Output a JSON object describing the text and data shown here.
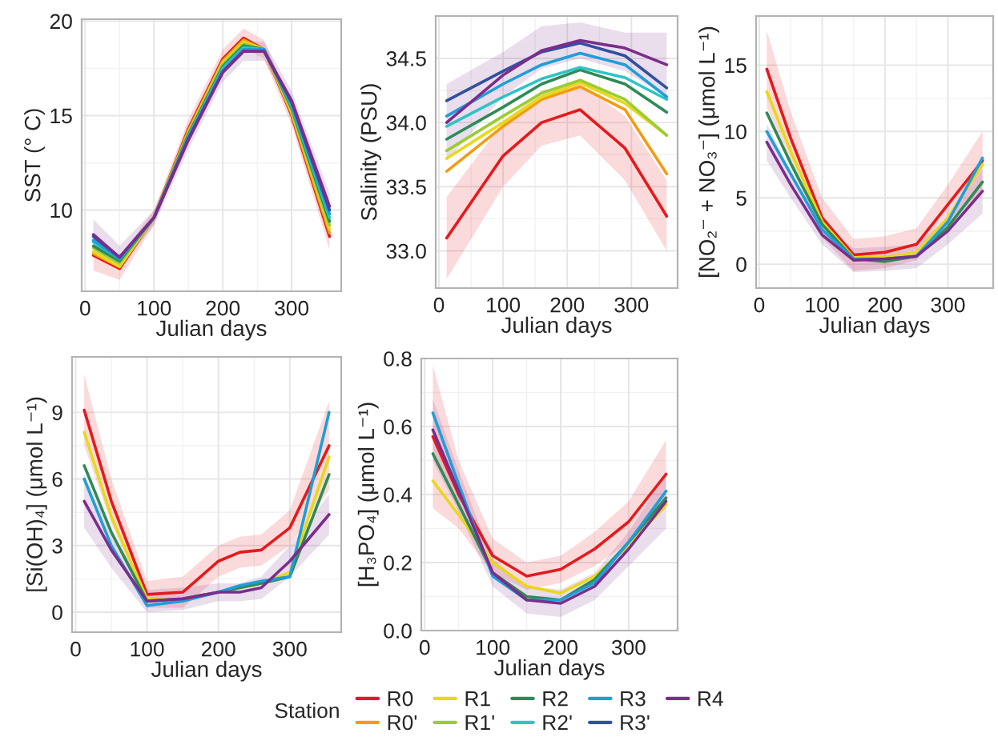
{
  "chart_data": [
    {
      "type": "line",
      "xlabel": "Julian days",
      "ylabel": "SST (° C)",
      "xlim": [
        -5,
        372
      ],
      "xticks": [
        0,
        100,
        200,
        300
      ],
      "ylim": [
        5.7,
        20.1
      ],
      "yticks": [
        10,
        15,
        20
      ],
      "grid": true,
      "legend": "bottom",
      "legend_title": "Station",
      "x": [
        12,
        50,
        100,
        150,
        200,
        230,
        260,
        300,
        355
      ],
      "series": [
        {
          "name": "R0",
          "color": "#e41a1c",
          "values": [
            7.6,
            6.9,
            9.6,
            14.3,
            18.0,
            19.1,
            18.5,
            15.0,
            8.6
          ],
          "lower": [
            6.8,
            6.3,
            9.2,
            13.8,
            17.5,
            18.6,
            18.0,
            14.5,
            7.9
          ],
          "upper": [
            8.4,
            7.5,
            10.0,
            14.8,
            18.5,
            19.6,
            19.0,
            15.5,
            9.3
          ]
        },
        {
          "name": "R0'",
          "color": "#f39c12",
          "values": [
            7.7,
            7.0,
            9.6,
            14.2,
            17.9,
            19.0,
            18.5,
            15.1,
            8.8
          ]
        },
        {
          "name": "R1",
          "color": "#e8d81a",
          "values": [
            7.8,
            7.0,
            9.6,
            14.1,
            17.8,
            18.9,
            18.5,
            15.2,
            9.0
          ]
        },
        {
          "name": "R1'",
          "color": "#9acd32",
          "values": [
            8.0,
            7.2,
            9.6,
            14.0,
            17.7,
            18.8,
            18.5,
            15.3,
            9.2
          ]
        },
        {
          "name": "R2",
          "color": "#2e8b57",
          "values": [
            8.1,
            7.3,
            9.6,
            14.0,
            17.6,
            18.7,
            18.5,
            15.4,
            9.4
          ]
        },
        {
          "name": "R2'",
          "color": "#2ec4c6",
          "values": [
            8.3,
            7.4,
            9.6,
            13.9,
            17.5,
            18.6,
            18.5,
            15.5,
            9.6
          ]
        },
        {
          "name": "R3",
          "color": "#1f9ed9",
          "values": [
            8.4,
            7.4,
            9.6,
            13.8,
            17.4,
            18.5,
            18.5,
            15.6,
            9.8
          ]
        },
        {
          "name": "R3'",
          "color": "#3050a0",
          "values": [
            8.6,
            7.5,
            9.6,
            13.8,
            17.3,
            18.4,
            18.4,
            15.7,
            10.0
          ]
        },
        {
          "name": "R4",
          "color": "#7b2d8b",
          "values": [
            8.7,
            7.5,
            9.6,
            13.7,
            17.3,
            18.4,
            18.4,
            15.8,
            10.2
          ],
          "lower": [
            7.9,
            6.9,
            9.2,
            13.2,
            16.8,
            17.9,
            17.9,
            15.3,
            9.5
          ],
          "upper": [
            9.5,
            8.1,
            10.0,
            14.2,
            17.8,
            18.9,
            18.9,
            16.3,
            10.9
          ]
        }
      ]
    },
    {
      "type": "line",
      "xlabel": "Julian days",
      "ylabel": "Salinity (PSU)",
      "xlim": [
        -5,
        372
      ],
      "xticks": [
        0,
        100,
        200,
        300
      ],
      "ylim": [
        32.71,
        34.83
      ],
      "yticks": [
        {
          "value": 33.0,
          "label": "33.0"
        },
        {
          "value": 33.5,
          "label": "33.5"
        },
        {
          "value": 34.0,
          "label": "34.0"
        },
        {
          "value": 34.5,
          "label": "34.5"
        }
      ],
      "grid": true,
      "x": [
        12,
        100,
        160,
        220,
        290,
        355
      ],
      "series": [
        {
          "color": "#e41a1c",
          "values": [
            33.1,
            33.74,
            34.0,
            34.1,
            33.8,
            33.27
          ],
          "lower": [
            32.78,
            33.5,
            33.82,
            33.9,
            33.55,
            33.0
          ],
          "upper": [
            33.42,
            34.0,
            34.25,
            34.3,
            34.05,
            33.55
          ]
        },
        {
          "color": "#f39c12",
          "values": [
            33.62,
            33.97,
            34.18,
            34.28,
            34.1,
            33.6
          ]
        },
        {
          "color": "#e8d81a",
          "values": [
            33.72,
            34.0,
            34.2,
            34.31,
            34.15,
            33.9
          ]
        },
        {
          "color": "#9acd32",
          "values": [
            33.78,
            34.05,
            34.23,
            34.33,
            34.18,
            33.9
          ]
        },
        {
          "color": "#2e8b57",
          "values": [
            33.87,
            34.12,
            34.3,
            34.41,
            34.3,
            34.08
          ]
        },
        {
          "color": "#2ec4c6",
          "values": [
            33.97,
            34.2,
            34.34,
            34.43,
            34.35,
            34.18
          ]
        },
        {
          "color": "#1f9ed9",
          "values": [
            34.05,
            34.3,
            34.45,
            34.54,
            34.45,
            34.2
          ]
        },
        {
          "color": "#3050a0",
          "values": [
            34.17,
            34.4,
            34.55,
            34.62,
            34.52,
            34.27
          ]
        },
        {
          "color": "#7b2d8b",
          "values": [
            34.0,
            34.37,
            34.56,
            34.64,
            34.58,
            34.45
          ],
          "lower": [
            33.7,
            34.2,
            34.42,
            34.5,
            34.4,
            34.2
          ],
          "upper": [
            34.3,
            34.55,
            34.75,
            34.78,
            34.7,
            34.7
          ]
        }
      ]
    },
    {
      "type": "line",
      "xlabel": "Julian days",
      "ylabel": "[NO₂⁻ + NO₃⁻] (μmol L⁻¹)",
      "xlim": [
        -5,
        372
      ],
      "xticks": [
        0,
        100,
        200,
        300
      ],
      "ylim": [
        -1.8,
        18.7
      ],
      "yticks": [
        0,
        5,
        10,
        15
      ],
      "grid": true,
      "x": [
        12,
        50,
        100,
        150,
        200,
        250,
        300,
        355
      ],
      "series": [
        {
          "color": "#e41a1c",
          "values": [
            14.7,
            9.5,
            3.5,
            0.7,
            0.9,
            1.5,
            4.5,
            7.8
          ],
          "lower": [
            11.8,
            7.5,
            2.0,
            -0.5,
            -0.3,
            0.3,
            3.0,
            5.5
          ],
          "upper": [
            17.6,
            11.5,
            5.0,
            1.9,
            2.1,
            2.7,
            6.0,
            10.0
          ]
        },
        {
          "color": "#e8d81a",
          "values": [
            13.0,
            8.5,
            3.2,
            0.5,
            0.5,
            0.9,
            3.5,
            7.5
          ]
        },
        {
          "color": "#2e8b57",
          "values": [
            11.4,
            7.6,
            3.0,
            0.4,
            0.2,
            0.6,
            2.8,
            6.2
          ]
        },
        {
          "color": "#1f9ed9",
          "values": [
            10.0,
            6.8,
            2.6,
            0.4,
            0.4,
            0.6,
            3.2,
            8.0
          ]
        },
        {
          "color": "#7b2d8b",
          "values": [
            9.2,
            6.0,
            2.2,
            0.3,
            0.4,
            0.6,
            2.5,
            5.5
          ],
          "lower": [
            7.8,
            5.0,
            1.5,
            -0.6,
            -0.5,
            -0.3,
            1.5,
            3.8
          ],
          "upper": [
            10.6,
            7.0,
            2.9,
            1.2,
            1.3,
            1.5,
            3.5,
            7.2
          ]
        }
      ]
    },
    {
      "type": "line",
      "xlabel": "Julian days",
      "ylabel": "[Si(OH)₄] (μmol L⁻¹)",
      "xlim": [
        -5,
        372
      ],
      "xticks": [
        0,
        100,
        200,
        300
      ],
      "ylim": [
        -0.9,
        11.5
      ],
      "yticks": [
        0,
        3,
        6,
        9
      ],
      "grid": true,
      "x": [
        12,
        50,
        100,
        150,
        200,
        230,
        260,
        300,
        355
      ],
      "series": [
        {
          "color": "#e41a1c",
          "values": [
            9.1,
            5.0,
            0.8,
            0.9,
            2.3,
            2.7,
            2.8,
            3.8,
            7.5
          ],
          "lower": [
            7.5,
            4.0,
            0.2,
            0.2,
            1.6,
            2.0,
            2.1,
            3.0,
            5.5
          ],
          "upper": [
            10.7,
            6.0,
            1.4,
            1.6,
            3.0,
            3.4,
            3.5,
            4.6,
            9.5
          ]
        },
        {
          "color": "#e8d81a",
          "values": [
            8.1,
            4.3,
            0.6,
            0.6,
            0.9,
            1.1,
            1.3,
            1.8,
            7.0
          ]
        },
        {
          "color": "#2e8b57",
          "values": [
            6.6,
            3.6,
            0.5,
            0.6,
            0.9,
            1.1,
            1.3,
            1.6,
            6.2
          ]
        },
        {
          "color": "#1f9ed9",
          "values": [
            6.0,
            3.0,
            0.3,
            0.5,
            0.9,
            1.2,
            1.4,
            1.6,
            9.0
          ]
        },
        {
          "color": "#7b2d8b",
          "values": [
            5.0,
            2.8,
            0.5,
            0.6,
            0.9,
            0.9,
            1.1,
            2.3,
            4.4
          ],
          "lower": [
            3.8,
            2.0,
            0.0,
            0.1,
            0.5,
            0.5,
            0.6,
            1.6,
            3.5
          ],
          "upper": [
            6.2,
            3.6,
            1.0,
            1.1,
            1.3,
            1.3,
            1.6,
            3.0,
            5.3
          ]
        }
      ]
    },
    {
      "type": "line",
      "xlabel": "Julian days",
      "ylabel": "[H₃PO₄] (μmol L⁻¹)",
      "xlim": [
        -5,
        372
      ],
      "xticks": [
        0,
        100,
        200,
        300
      ],
      "ylim": [
        0,
        0.8
      ],
      "yticks": [
        {
          "value": 0,
          "label": "0.0"
        },
        {
          "value": 0.2,
          "label": "0.2"
        },
        {
          "value": 0.4,
          "label": "0.4"
        },
        {
          "value": 0.6,
          "label": "0.6"
        },
        {
          "value": 0.8,
          "label": "0.8"
        }
      ],
      "grid": true,
      "x": [
        12,
        50,
        100,
        150,
        200,
        250,
        300,
        355
      ],
      "series": [
        {
          "color": "#e41a1c",
          "values": [
            0.57,
            0.4,
            0.22,
            0.16,
            0.18,
            0.24,
            0.32,
            0.46
          ],
          "lower": [
            0.36,
            0.3,
            0.17,
            0.12,
            0.14,
            0.19,
            0.26,
            0.36
          ],
          "upper": [
            0.78,
            0.5,
            0.27,
            0.2,
            0.22,
            0.29,
            0.38,
            0.56
          ]
        },
        {
          "color": "#e8d81a",
          "values": [
            0.44,
            0.34,
            0.2,
            0.13,
            0.11,
            0.16,
            0.25,
            0.37
          ]
        },
        {
          "color": "#2e8b57",
          "values": [
            0.52,
            0.37,
            0.17,
            0.1,
            0.09,
            0.15,
            0.26,
            0.39
          ]
        },
        {
          "color": "#1f9ed9",
          "values": [
            0.64,
            0.43,
            0.16,
            0.09,
            0.09,
            0.14,
            0.26,
            0.41
          ]
        },
        {
          "color": "#7b2d8b",
          "values": [
            0.59,
            0.41,
            0.17,
            0.09,
            0.08,
            0.13,
            0.24,
            0.38
          ],
          "lower": [
            0.5,
            0.35,
            0.13,
            0.05,
            0.04,
            0.09,
            0.19,
            0.3
          ],
          "upper": [
            0.68,
            0.47,
            0.21,
            0.13,
            0.12,
            0.17,
            0.29,
            0.46
          ]
        }
      ]
    }
  ]
}
